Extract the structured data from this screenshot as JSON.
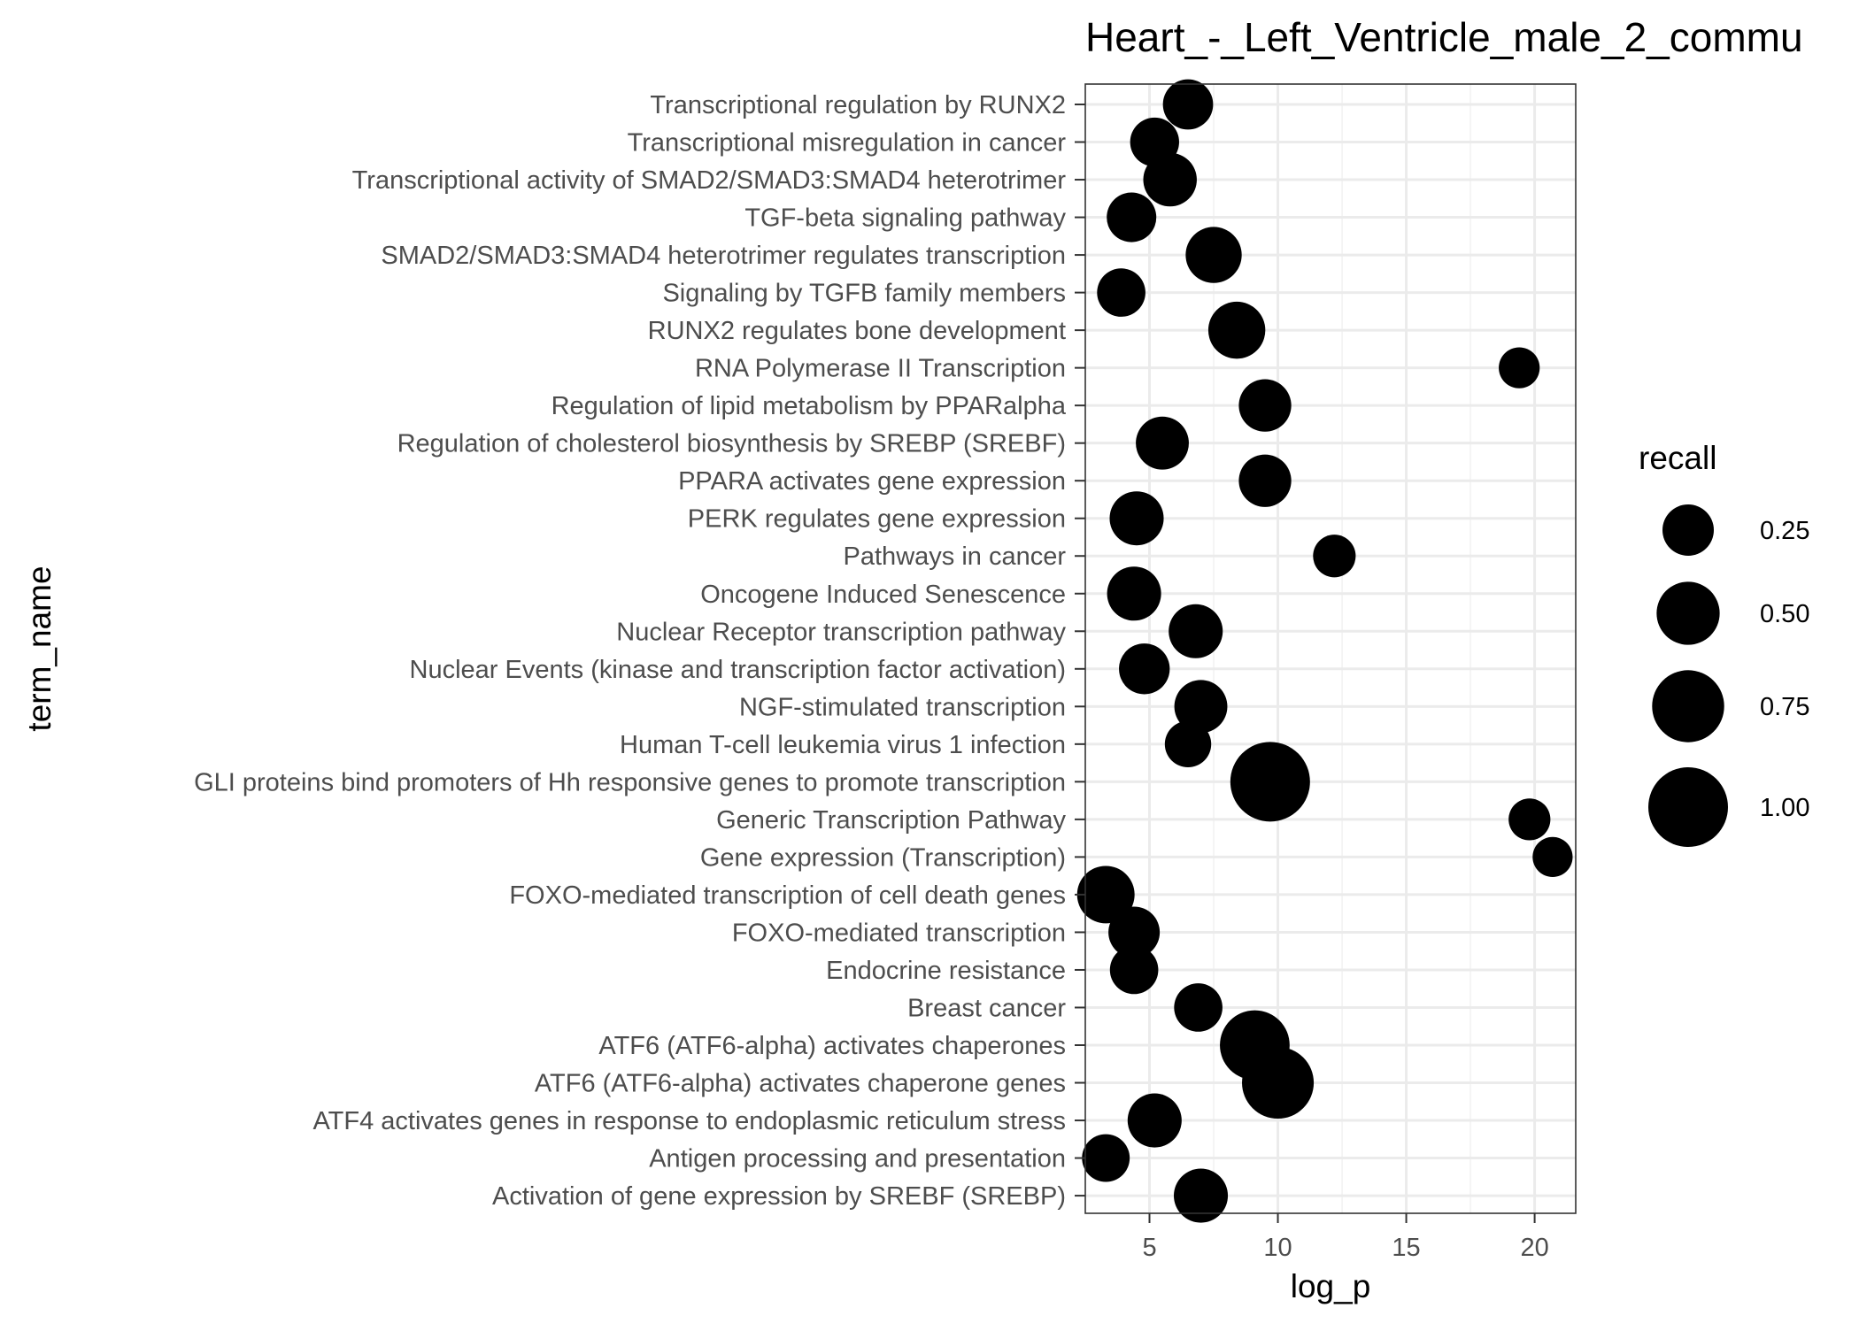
{
  "chart_data": {
    "type": "scatter",
    "title": "Heart_-_Left_Ventricle_male_2_commu",
    "xlabel": "log_p",
    "ylabel": "term_name",
    "xlim": [
      2.5,
      21.6
    ],
    "x_ticks": [
      5,
      10,
      15,
      20
    ],
    "x_tick_labels": [
      "5",
      "10",
      "15",
      "20"
    ],
    "grid": true,
    "size_variable": "recall",
    "legend": {
      "title": "recall",
      "placement": "right",
      "entries": [
        {
          "label": "0.25",
          "value": 0.25
        },
        {
          "label": "0.50",
          "value": 0.5
        },
        {
          "label": "0.75",
          "value": 0.75
        },
        {
          "label": "1.00",
          "value": 1.0
        }
      ]
    },
    "points": [
      {
        "term": "Transcriptional regulation by RUNX2",
        "log_p": 6.5,
        "recall": 0.23
      },
      {
        "term": "Transcriptional misregulation in cancer",
        "log_p": 5.2,
        "recall": 0.21
      },
      {
        "term": "Transcriptional activity of SMAD2/SMAD3:SMAD4 heterotrimer",
        "log_p": 5.8,
        "recall": 0.29
      },
      {
        "term": "TGF-beta signaling pathway",
        "log_p": 4.3,
        "recall": 0.22
      },
      {
        "term": "SMAD2/SMAD3:SMAD4 heterotrimer regulates transcription",
        "log_p": 7.5,
        "recall": 0.34
      },
      {
        "term": "Signaling by TGFB family members",
        "log_p": 3.9,
        "recall": 0.2
      },
      {
        "term": "RUNX2 regulates bone development",
        "log_p": 8.4,
        "recall": 0.36
      },
      {
        "term": "RNA Polymerase II Transcription",
        "log_p": 19.4,
        "recall": 0.1
      },
      {
        "term": "Regulation of lipid metabolism by PPARalpha",
        "log_p": 9.5,
        "recall": 0.27
      },
      {
        "term": "Regulation of cholesterol biosynthesis by SREBP (SREBF)",
        "log_p": 5.5,
        "recall": 0.28
      },
      {
        "term": "PPARA activates gene expression",
        "log_p": 9.5,
        "recall": 0.27
      },
      {
        "term": "PERK regulates gene expression",
        "log_p": 4.5,
        "recall": 0.3
      },
      {
        "term": "Pathways in cancer",
        "log_p": 12.2,
        "recall": 0.12
      },
      {
        "term": "Oncogene Induced Senescence",
        "log_p": 4.4,
        "recall": 0.3
      },
      {
        "term": "Nuclear Receptor transcription pathway",
        "log_p": 6.8,
        "recall": 0.3
      },
      {
        "term": "Nuclear Events (kinase and transcription factor activation)",
        "log_p": 4.8,
        "recall": 0.24
      },
      {
        "term": "NGF-stimulated transcription",
        "log_p": 7.0,
        "recall": 0.28
      },
      {
        "term": "Human T-cell leukemia virus 1 infection",
        "log_p": 6.5,
        "recall": 0.17
      },
      {
        "term": "GLI proteins bind promoters of Hh responsive genes to promote transcription",
        "log_p": 9.7,
        "recall": 1.0
      },
      {
        "term": "Generic Transcription Pathway",
        "log_p": 19.8,
        "recall": 0.11
      },
      {
        "term": "Gene expression (Transcription)",
        "log_p": 20.7,
        "recall": 0.09
      },
      {
        "term": "FOXO-mediated transcription of cell death genes",
        "log_p": 3.3,
        "recall": 0.37
      },
      {
        "term": "FOXO-mediated transcription",
        "log_p": 4.4,
        "recall": 0.25
      },
      {
        "term": "Endocrine resistance",
        "log_p": 4.4,
        "recall": 0.2
      },
      {
        "term": "Breast cancer",
        "log_p": 6.9,
        "recall": 0.2
      },
      {
        "term": "ATF6 (ATF6-alpha) activates chaperones",
        "log_p": 9.1,
        "recall": 0.68
      },
      {
        "term": "ATF6 (ATF6-alpha) activates chaperone genes",
        "log_p": 10.0,
        "recall": 0.74
      },
      {
        "term": "ATF4 activates genes in response to endoplasmic reticulum  stress",
        "log_p": 5.2,
        "recall": 0.3
      },
      {
        "term": "Antigen processing and presentation",
        "log_p": 3.3,
        "recall": 0.19
      },
      {
        "term": "Activation of gene expression by SREBF (SREBP)",
        "log_p": 7.0,
        "recall": 0.3
      }
    ]
  }
}
